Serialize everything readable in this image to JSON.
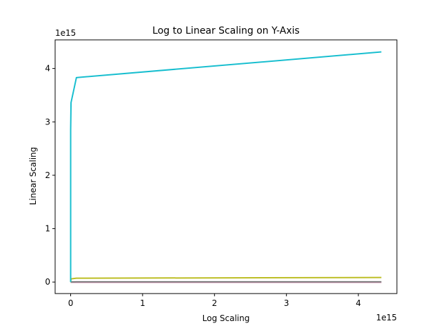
{
  "chart_data": {
    "type": "line",
    "title": "Log to Linear Scaling on Y-Axis",
    "xlabel": "Log Scaling",
    "ylabel": "Linear Scaling",
    "x_offset_text": "1e15",
    "y_offset_text": "1e15",
    "xlim": [
      -0.216,
      4.536
    ],
    "ylim": [
      -0.216,
      4.536
    ],
    "x_ticks": [
      0,
      1,
      2,
      3,
      4
    ],
    "x_tick_labels": [
      "0",
      "1",
      "2",
      "3",
      "4"
    ],
    "y_ticks": [
      0,
      1,
      2,
      3,
      4
    ],
    "y_tick_labels": [
      "0",
      "1",
      "2",
      "3",
      "4"
    ],
    "grid": false,
    "legend": "none",
    "series": [
      {
        "color": "#1f77b4",
        "points": [
          [
            0,
            0
          ],
          [
            0.08,
            0
          ],
          [
            4.32,
            0
          ]
        ]
      },
      {
        "color": "#ff7f0e",
        "points": [
          [
            0,
            0
          ],
          [
            0.08,
            0
          ],
          [
            4.32,
            0
          ]
        ]
      },
      {
        "color": "#2ca02c",
        "points": [
          [
            0,
            0
          ],
          [
            0.08,
            0
          ],
          [
            4.32,
            0
          ]
        ]
      },
      {
        "color": "#d62728",
        "points": [
          [
            0,
            0
          ],
          [
            0.08,
            0
          ],
          [
            4.32,
            0
          ]
        ]
      },
      {
        "color": "#9467bd",
        "points": [
          [
            0,
            0
          ],
          [
            0.08,
            0
          ],
          [
            4.32,
            0
          ]
        ]
      },
      {
        "color": "#8c564b",
        "points": [
          [
            0,
            0
          ],
          [
            0.08,
            0
          ],
          [
            4.32,
            0
          ]
        ]
      },
      {
        "color": "#e377c2",
        "points": [
          [
            0,
            0
          ],
          [
            0.08,
            0
          ],
          [
            4.32,
            0
          ]
        ]
      },
      {
        "color": "#7f7f7f",
        "points": [
          [
            0,
            0
          ],
          [
            0.08,
            0.004
          ],
          [
            4.32,
            0.004
          ]
        ]
      },
      {
        "color": "#bcbd22",
        "points": [
          [
            0,
            0
          ],
          [
            0.005,
            0.06
          ],
          [
            0.08,
            0.072
          ],
          [
            4.32,
            0.085
          ]
        ]
      },
      {
        "color": "#17becf",
        "points": [
          [
            0,
            0
          ],
          [
            0.0,
            2.85
          ],
          [
            0.005,
            3.36
          ],
          [
            0.08,
            3.83
          ],
          [
            4.32,
            4.31
          ]
        ]
      }
    ]
  }
}
